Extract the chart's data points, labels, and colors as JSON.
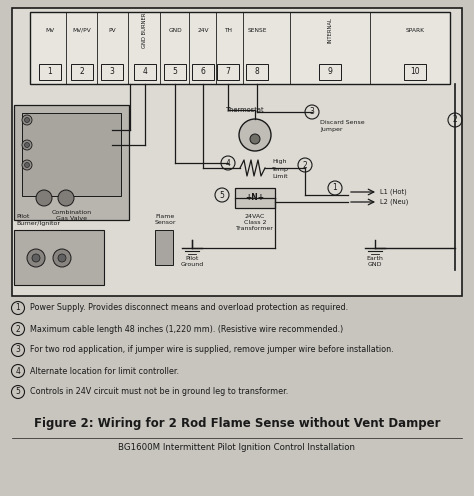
{
  "bg_color": "#c8c5be",
  "diagram_bg": "#dddad3",
  "terminal_bg": "#e8e5de",
  "box_bg": "#d0cdc6",
  "title": "Figure 2: Wiring for 2 Rod Flame Sense without Vent Damper",
  "subtitle": "BG1600M Intermittent Pilot Ignition Control Installation",
  "notes": [
    "Power Supply. Provides disconnect means and overload protection as required.",
    "Maximum cable length 48 inches (1,220 mm). (Resistive wire recommended.)",
    "For two rod application, if jumper wire is supplied, remove jumper wire before installation.",
    "Alternate location for limit controller.",
    "Controls in 24V circuit must not be in ground leg to transformer."
  ],
  "note_numbers": [
    "1",
    "2",
    "3",
    "4",
    "5"
  ],
  "lc": "#1a1a1a",
  "tc": "#1a1a1a",
  "term_labels": [
    "MV",
    "MV/PV",
    "PV",
    "GND\nBURNER",
    "GND",
    "24V",
    "TH",
    "SENSE",
    "INTERNAL",
    "SPARK"
  ],
  "term_nums": [
    "1",
    "2",
    "3",
    "4",
    "5",
    "6",
    "7",
    "8",
    "9",
    "10"
  ]
}
